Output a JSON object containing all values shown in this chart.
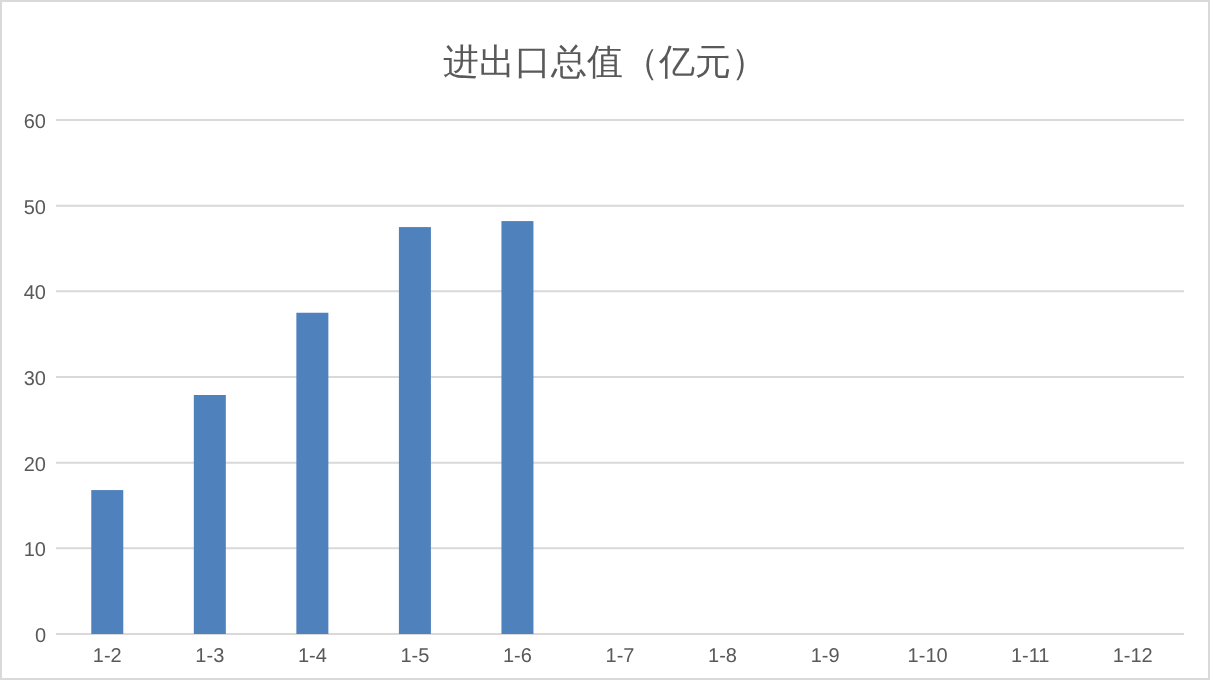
{
  "chart_data": {
    "type": "bar",
    "title": "进出口总值（亿元）",
    "categories": [
      "1-2",
      "1-3",
      "1-4",
      "1-5",
      "1-6",
      "1-7",
      "1-8",
      "1-9",
      "1-10",
      "1-11",
      "1-12"
    ],
    "values": [
      16.8,
      27.9,
      37.5,
      47.5,
      48.2,
      null,
      null,
      null,
      null,
      null,
      null
    ],
    "color": "#4f81bd",
    "ylim": [
      0,
      60
    ],
    "yticks": [
      0,
      10,
      20,
      30,
      40,
      50,
      60
    ],
    "grid": "y"
  }
}
